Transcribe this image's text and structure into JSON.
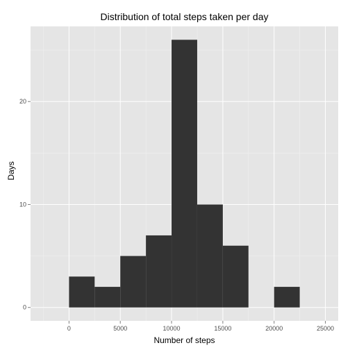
{
  "chart_data": {
    "type": "bar",
    "title": "Distribution of total steps taken per day",
    "xlabel": "Number of steps",
    "ylabel": "Days",
    "bins": [
      {
        "x0": 0,
        "x1": 2500,
        "count": 3
      },
      {
        "x0": 2500,
        "x1": 5000,
        "count": 2
      },
      {
        "x0": 5000,
        "x1": 7500,
        "count": 5
      },
      {
        "x0": 7500,
        "x1": 10000,
        "count": 7
      },
      {
        "x0": 10000,
        "x1": 12500,
        "count": 26
      },
      {
        "x0": 12500,
        "x1": 15000,
        "count": 10
      },
      {
        "x0": 15000,
        "x1": 17500,
        "count": 6
      },
      {
        "x0": 17500,
        "x1": 20000,
        "count": 0
      },
      {
        "x0": 20000,
        "x1": 22500,
        "count": 2
      }
    ],
    "xlim": [
      -3750,
      26250
    ],
    "ylim": [
      -1.3,
      27.3
    ],
    "xticks": [
      0,
      5000,
      10000,
      15000,
      20000,
      25000
    ],
    "xtick_labels": [
      "0",
      "5000",
      "10000",
      "15000",
      "20000",
      "25000"
    ],
    "yticks": [
      0,
      10,
      20
    ],
    "ytick_labels": [
      "0",
      "10",
      "20"
    ],
    "grid": true,
    "colors": {
      "panel": "#e5e5e5",
      "grid_major": "#ffffff",
      "grid_minor": "#f2f2f2",
      "bar": "#333333",
      "tick_text": "#4d4d4d",
      "text": "#000000"
    }
  }
}
